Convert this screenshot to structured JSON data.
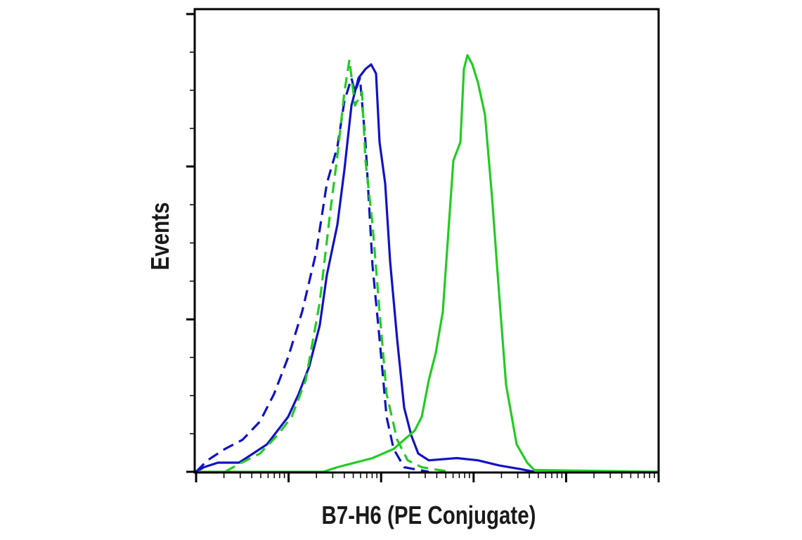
{
  "chart_data": {
    "type": "line",
    "title": "",
    "xlabel": "B7-H6 (PE Conjugate)",
    "ylabel": "Events",
    "xscale": "log",
    "xlim_decades": [
      0,
      5
    ],
    "ylim": [
      0,
      100
    ],
    "y_major_ticks": [
      0,
      33.3,
      66.7,
      100
    ],
    "grid": false,
    "legend": "none",
    "series": [
      {
        "name": "blue-solid",
        "color": "#1212c4",
        "dash": false,
        "points": [
          [
            0,
            0
          ],
          [
            0.084,
            1
          ],
          [
            0.236,
            2
          ],
          [
            0.464,
            2
          ],
          [
            0.616,
            4
          ],
          [
            0.767,
            6
          ],
          [
            0.881,
            9
          ],
          [
            0.995,
            12
          ],
          [
            1.109,
            17
          ],
          [
            1.223,
            23
          ],
          [
            1.337,
            32
          ],
          [
            1.413,
            43
          ],
          [
            1.527,
            54
          ],
          [
            1.603,
            66
          ],
          [
            1.679,
            80
          ],
          [
            1.755,
            86
          ],
          [
            1.831,
            88
          ],
          [
            1.892,
            89
          ],
          [
            1.945,
            87
          ],
          [
            1.983,
            72
          ],
          [
            2.044,
            63
          ],
          [
            2.097,
            46
          ],
          [
            2.173,
            29
          ],
          [
            2.249,
            14
          ],
          [
            2.325,
            8
          ],
          [
            2.401,
            4
          ],
          [
            2.515,
            2.5
          ],
          [
            2.819,
            3
          ],
          [
            3.047,
            2.5
          ],
          [
            3.275,
            1.4
          ],
          [
            3.503,
            0.6
          ],
          [
            3.655,
            0
          ]
        ]
      },
      {
        "name": "green-solid",
        "color": "#22cc22",
        "dash": false,
        "points": [
          [
            0,
            0
          ],
          [
            1.375,
            0
          ],
          [
            1.527,
            1
          ],
          [
            1.907,
            3
          ],
          [
            2.135,
            5
          ],
          [
            2.249,
            7
          ],
          [
            2.363,
            9
          ],
          [
            2.439,
            12
          ],
          [
            2.515,
            20
          ],
          [
            2.591,
            26
          ],
          [
            2.667,
            35
          ],
          [
            2.743,
            57
          ],
          [
            2.781,
            68
          ],
          [
            2.857,
            72
          ],
          [
            2.895,
            88
          ],
          [
            2.933,
            91
          ],
          [
            2.986,
            89
          ],
          [
            3.047,
            85
          ],
          [
            3.123,
            78
          ],
          [
            3.199,
            60
          ],
          [
            3.275,
            39
          ],
          [
            3.351,
            19
          ],
          [
            3.465,
            6
          ],
          [
            3.579,
            2
          ],
          [
            3.655,
            0.4
          ],
          [
            5,
            0
          ]
        ]
      },
      {
        "name": "blue-dashed",
        "color": "#1212c4",
        "dash": true,
        "points": [
          [
            0,
            0
          ],
          [
            0.122,
            2.5
          ],
          [
            0.312,
            5
          ],
          [
            0.502,
            7
          ],
          [
            0.691,
            11
          ],
          [
            0.843,
            17
          ],
          [
            0.995,
            25
          ],
          [
            1.147,
            35
          ],
          [
            1.299,
            48
          ],
          [
            1.413,
            63
          ],
          [
            1.527,
            71
          ],
          [
            1.603,
            81
          ],
          [
            1.679,
            86
          ],
          [
            1.717,
            83
          ],
          [
            1.771,
            86
          ],
          [
            1.831,
            72
          ],
          [
            1.907,
            45
          ],
          [
            1.983,
            29
          ],
          [
            2.059,
            12
          ],
          [
            2.135,
            5
          ],
          [
            2.249,
            1
          ],
          [
            2.515,
            0
          ]
        ]
      },
      {
        "name": "green-dashed",
        "color": "#22cc22",
        "dash": true,
        "points": [
          [
            0.312,
            0
          ],
          [
            0.464,
            1.7
          ],
          [
            0.691,
            4
          ],
          [
            0.881,
            8
          ],
          [
            1.033,
            12
          ],
          [
            1.185,
            20
          ],
          [
            1.337,
            37
          ],
          [
            1.451,
            57
          ],
          [
            1.527,
            69
          ],
          [
            1.603,
            83
          ],
          [
            1.657,
            90
          ],
          [
            1.717,
            80
          ],
          [
            1.793,
            83
          ],
          [
            1.831,
            68
          ],
          [
            1.907,
            54
          ],
          [
            1.983,
            35
          ],
          [
            2.059,
            17
          ],
          [
            2.173,
            7
          ],
          [
            2.287,
            2.5
          ],
          [
            2.439,
            1
          ],
          [
            2.743,
            0
          ]
        ]
      }
    ]
  }
}
